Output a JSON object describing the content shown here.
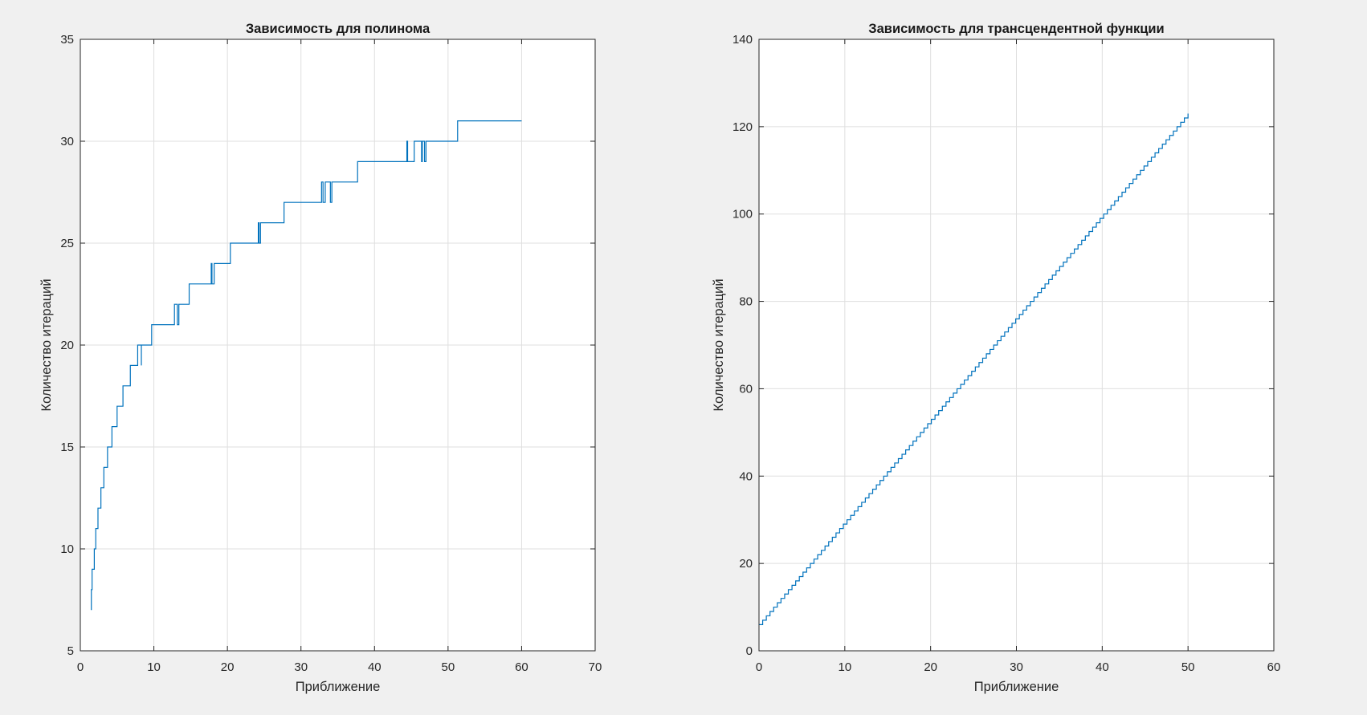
{
  "chart_data": [
    {
      "type": "line",
      "title": "Зависимость для полинома",
      "xlabel": "Приближение",
      "ylabel": "Количество итераций",
      "xlim": [
        0,
        70
      ],
      "ylim": [
        5,
        35
      ],
      "xticks": [
        0,
        10,
        20,
        30,
        40,
        50,
        60,
        70
      ],
      "yticks": [
        5,
        10,
        15,
        20,
        25,
        30,
        35
      ],
      "grid": true,
      "color": "#0072bd",
      "series": [
        {
          "x": [
            1.5,
            1.5,
            1.6,
            1.6,
            1.9,
            1.9,
            2.1,
            2.1,
            2.4,
            2.4,
            2.8,
            2.8,
            3.2,
            3.2,
            3.7,
            3.7,
            4.3,
            4.3,
            5.0,
            5.0,
            5.8,
            5.8,
            6.8,
            6.8,
            7.8,
            7.8,
            8.3,
            8.3,
            8.3,
            9.7,
            9.7,
            10.8,
            10.8,
            12.8,
            12.8,
            13.2,
            13.2,
            13.4,
            13.4,
            14.8,
            14.8,
            17.8,
            17.8,
            17.9,
            17.9,
            18.2,
            18.2,
            18.5,
            18.5,
            20.4,
            20.4,
            24.2,
            24.2,
            24.3,
            24.3,
            24.5,
            24.5,
            27.7,
            27.7,
            32.8,
            32.8,
            33.0,
            33.0,
            33.3,
            33.3,
            34.0,
            34.0,
            34.2,
            34.2,
            37.7,
            37.7,
            44.4,
            44.4,
            44.5,
            44.5,
            45.4,
            45.4,
            46.4,
            46.4,
            46.5,
            46.5,
            46.8,
            46.8,
            47.0,
            47.0,
            51.3,
            51.3,
            60
          ],
          "y": [
            7,
            8,
            8,
            9,
            9,
            10,
            10,
            11,
            11,
            12,
            12,
            13,
            13,
            14,
            14,
            15,
            15,
            16,
            16,
            17,
            17,
            18,
            18,
            19,
            19,
            20,
            20,
            19,
            20,
            20,
            21,
            21,
            21,
            21,
            22,
            22,
            21,
            21,
            22,
            22,
            23,
            23,
            24,
            24,
            23,
            23,
            24,
            24,
            24,
            24,
            25,
            25,
            26,
            26,
            25,
            25,
            26,
            26,
            27,
            27,
            28,
            28,
            27,
            27,
            28,
            28,
            27,
            27,
            28,
            28,
            29,
            29,
            30,
            30,
            29,
            29,
            30,
            30,
            29,
            29,
            30,
            30,
            29,
            29,
            30,
            30,
            31,
            31
          ]
        }
      ]
    },
    {
      "type": "line",
      "title": "Зависимость для трансцендентной функции",
      "xlabel": "Приближение",
      "ylabel": "Количество итераций",
      "xlim": [
        0,
        60
      ],
      "ylim": [
        0,
        140
      ],
      "xticks": [
        0,
        10,
        20,
        30,
        40,
        50,
        60
      ],
      "yticks": [
        0,
        20,
        40,
        60,
        80,
        100,
        120,
        140
      ],
      "grid": true,
      "color": "#0072bd",
      "series": [
        {
          "step": "staircase",
          "x_start": 0,
          "x_end": 50,
          "y_start": 6,
          "y_end": 123
        }
      ]
    }
  ]
}
